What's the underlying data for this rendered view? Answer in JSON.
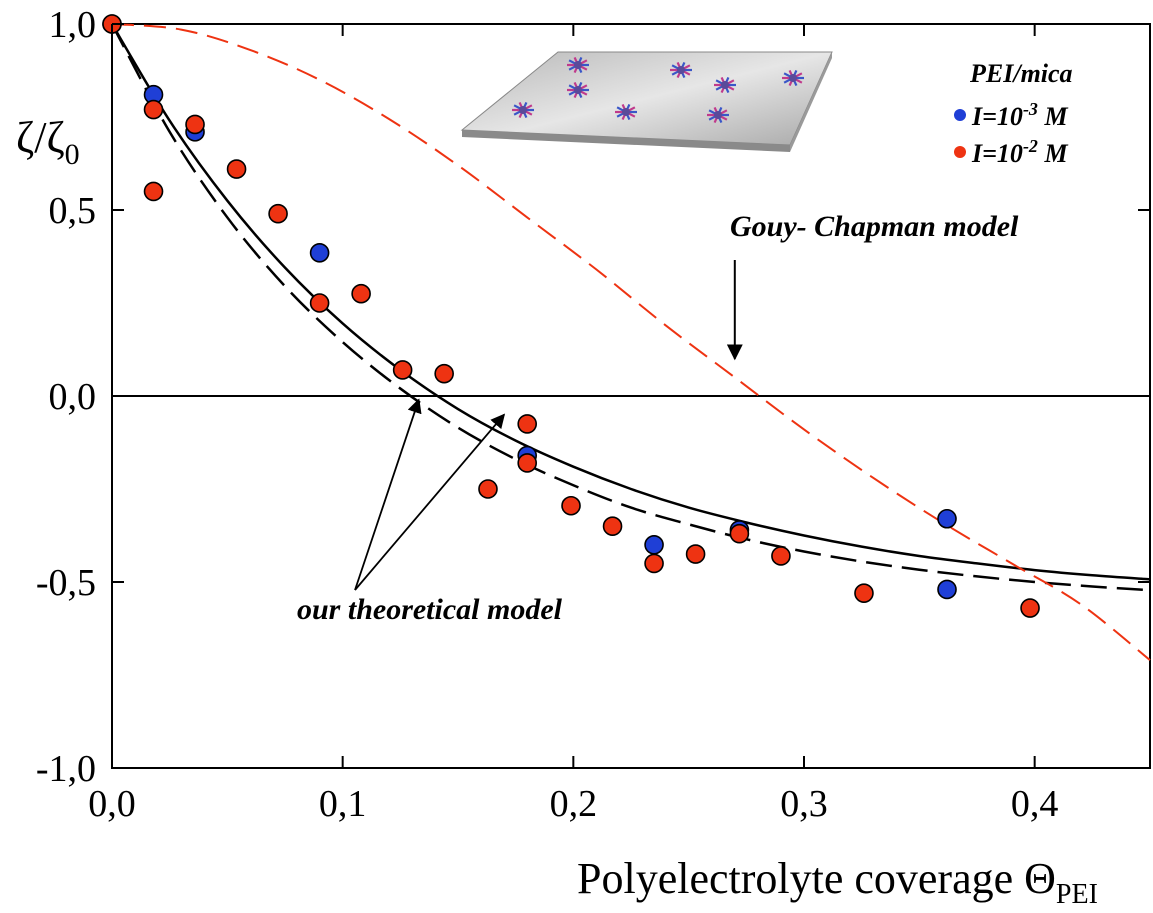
{
  "chart_data": {
    "type": "scatter",
    "title": "",
    "xlabel": "Polyelectrolyte  coverage Θ",
    "xlabel_subscript": "PEI",
    "ylabel": "ζ/ζ",
    "ylabel_subscript": "0",
    "xlim": [
      0,
      0.45
    ],
    "ylim": [
      -1.0,
      1.0
    ],
    "x_ticks": [
      0.0,
      0.1,
      0.2,
      0.3,
      0.4
    ],
    "x_tick_labels": [
      "0,0",
      "0,1",
      "0,2",
      "0,3",
      "0,4"
    ],
    "y_ticks": [
      1.0,
      0.5,
      0.0,
      -0.5,
      -1.0
    ],
    "y_tick_labels": [
      "1,0",
      "0,5",
      "0,0",
      "-0,5",
      "-1,0"
    ],
    "zero_line": true,
    "grid": false,
    "legend": {
      "placement": "top-right",
      "title": "PEI/mica",
      "entries": [
        {
          "label": "I=10",
          "sup": "-3",
          "suffix": " M",
          "color": "#1f3fd6"
        },
        {
          "label": "I=10",
          "sup": "-2",
          "suffix": " M",
          "color": "#ee3312"
        }
      ]
    },
    "series": [
      {
        "name": "I=10-3 M",
        "kind": "points",
        "color": "#1f3fd6",
        "points": [
          [
            0.0,
            1.0
          ],
          [
            0.018,
            0.81
          ],
          [
            0.036,
            0.71
          ],
          [
            0.09,
            0.385
          ],
          [
            0.18,
            -0.16
          ],
          [
            0.235,
            -0.4
          ],
          [
            0.272,
            -0.36
          ],
          [
            0.362,
            -0.33
          ],
          [
            0.362,
            -0.52
          ]
        ]
      },
      {
        "name": "I=10-2 M",
        "kind": "points",
        "color": "#ee3312",
        "points": [
          [
            0.0,
            1.0
          ],
          [
            0.018,
            0.77
          ],
          [
            0.018,
            0.55
          ],
          [
            0.036,
            0.73
          ],
          [
            0.054,
            0.61
          ],
          [
            0.072,
            0.49
          ],
          [
            0.09,
            0.25
          ],
          [
            0.108,
            0.275
          ],
          [
            0.126,
            0.07
          ],
          [
            0.144,
            0.06
          ],
          [
            0.18,
            -0.075
          ],
          [
            0.18,
            -0.18
          ],
          [
            0.163,
            -0.25
          ],
          [
            0.199,
            -0.295
          ],
          [
            0.217,
            -0.35
          ],
          [
            0.235,
            -0.45
          ],
          [
            0.253,
            -0.425
          ],
          [
            0.272,
            -0.37
          ],
          [
            0.29,
            -0.43
          ],
          [
            0.326,
            -0.53
          ],
          [
            0.398,
            -0.57
          ]
        ]
      },
      {
        "name": "",
        "kind": "line",
        "style": "solid",
        "color": "#000000",
        "points": [
          [
            0.0,
            1.0
          ],
          [
            0.025,
            0.74
          ],
          [
            0.05,
            0.525
          ],
          [
            0.075,
            0.345
          ],
          [
            0.1,
            0.195
          ],
          [
            0.125,
            0.07
          ],
          [
            0.15,
            -0.035
          ],
          [
            0.175,
            -0.12
          ],
          [
            0.2,
            -0.19
          ],
          [
            0.225,
            -0.25
          ],
          [
            0.25,
            -0.3
          ],
          [
            0.275,
            -0.34
          ],
          [
            0.3,
            -0.375
          ],
          [
            0.325,
            -0.405
          ],
          [
            0.35,
            -0.43
          ],
          [
            0.375,
            -0.45
          ],
          [
            0.4,
            -0.468
          ],
          [
            0.425,
            -0.482
          ],
          [
            0.45,
            -0.493
          ]
        ]
      },
      {
        "name": "",
        "kind": "line",
        "style": "dashed",
        "color": "#000000",
        "points": [
          [
            0.0,
            1.0
          ],
          [
            0.025,
            0.71
          ],
          [
            0.05,
            0.48
          ],
          [
            0.075,
            0.295
          ],
          [
            0.1,
            0.145
          ],
          [
            0.125,
            0.02
          ],
          [
            0.15,
            -0.085
          ],
          [
            0.175,
            -0.17
          ],
          [
            0.2,
            -0.24
          ],
          [
            0.225,
            -0.3
          ],
          [
            0.25,
            -0.345
          ],
          [
            0.275,
            -0.385
          ],
          [
            0.3,
            -0.418
          ],
          [
            0.325,
            -0.445
          ],
          [
            0.35,
            -0.467
          ],
          [
            0.375,
            -0.485
          ],
          [
            0.4,
            -0.5
          ],
          [
            0.425,
            -0.512
          ],
          [
            0.45,
            -0.522
          ]
        ]
      },
      {
        "name": "",
        "kind": "line",
        "style": "dashed",
        "color": "#ee3312",
        "points": [
          [
            0.0,
            1.0
          ],
          [
            0.03,
            0.985
          ],
          [
            0.06,
            0.93
          ],
          [
            0.09,
            0.85
          ],
          [
            0.12,
            0.745
          ],
          [
            0.15,
            0.62
          ],
          [
            0.18,
            0.48
          ],
          [
            0.21,
            0.34
          ],
          [
            0.24,
            0.19
          ],
          [
            0.27,
            0.05
          ],
          [
            0.3,
            -0.09
          ],
          [
            0.33,
            -0.22
          ],
          [
            0.36,
            -0.34
          ],
          [
            0.39,
            -0.45
          ],
          [
            0.42,
            -0.56
          ],
          [
            0.45,
            -0.71
          ]
        ]
      }
    ],
    "annotations": [
      {
        "text": "Gouy- Chapman model",
        "anchor": [
          0.355,
          0.45
        ],
        "arrow_to": [
          [
            0.27,
            0.1
          ]
        ]
      },
      {
        "text": "our  theoretical model",
        "anchor": [
          0.125,
          -0.615
        ],
        "arrow_to": [
          [
            0.133,
            -0.01
          ],
          [
            0.17,
            -0.05
          ]
        ]
      }
    ]
  }
}
